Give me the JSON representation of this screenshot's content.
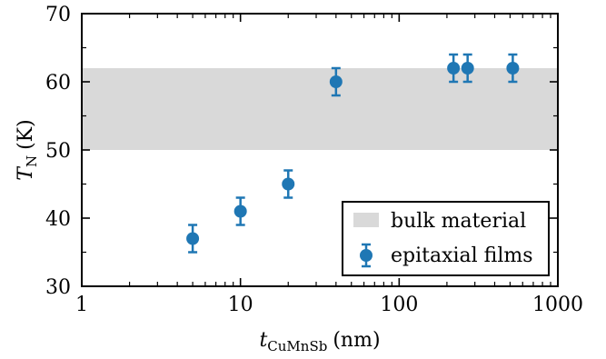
{
  "chart_data": {
    "type": "scatter",
    "xscale": "log",
    "xlim": [
      1,
      1000
    ],
    "ylim": [
      30,
      70
    ],
    "xlabel_main": "t",
    "xlabel_sub": "CuMnSb",
    "xlabel_unit": "(nm)",
    "ylabel_main": "T",
    "ylabel_sub": "N",
    "ylabel_unit": "(K)",
    "xticks": [
      {
        "value": 1,
        "label": "1"
      },
      {
        "value": 10,
        "label": "10"
      },
      {
        "value": 100,
        "label": "100"
      },
      {
        "value": 1000,
        "label": "1000"
      }
    ],
    "yticks": [
      {
        "value": 30,
        "label": "30"
      },
      {
        "value": 40,
        "label": "40"
      },
      {
        "value": 50,
        "label": "50"
      },
      {
        "value": 60,
        "label": "60"
      },
      {
        "value": 70,
        "label": "70"
      }
    ],
    "grid": false,
    "legend_position": "bottom-right",
    "band": {
      "name": "bulk material",
      "y_low": 50,
      "y_high": 62,
      "color": "#d9d9d9"
    },
    "series": [
      {
        "name": "epitaxial films",
        "color": "#1f77b4",
        "points": [
          {
            "x": 5,
            "y": 37,
            "err": 2
          },
          {
            "x": 10,
            "y": 41,
            "err": 2
          },
          {
            "x": 20,
            "y": 45,
            "err": 2
          },
          {
            "x": 40,
            "y": 60,
            "err": 2
          },
          {
            "x": 220,
            "y": 62,
            "err": 2
          },
          {
            "x": 270,
            "y": 62,
            "err": 2
          },
          {
            "x": 520,
            "y": 62,
            "err": 2
          }
        ]
      }
    ]
  }
}
